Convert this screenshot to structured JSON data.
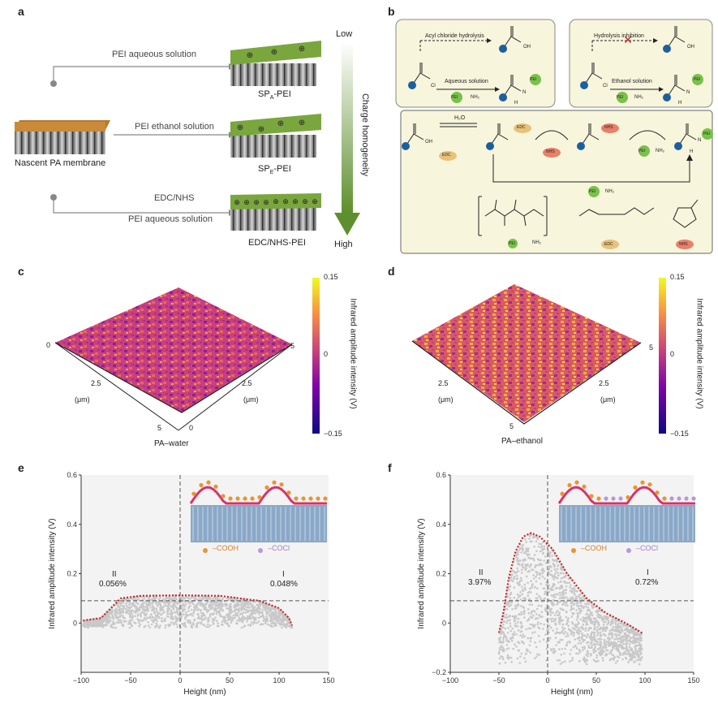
{
  "panels": {
    "a": {
      "label": "a",
      "arrow_top": "Low",
      "arrow_bottom": "High",
      "arrow_axis": "Charge homogeneity",
      "nascent": "Nascent PA membrane",
      "route1": "PEI aqueous solution",
      "route2": "PEI ethanol solution",
      "route3_top": "EDC/NHS",
      "route3_bottom": "PEI aqueous solution",
      "m1_main": "SP",
      "m1_sub": "A",
      "m1_tail": "-PEI",
      "m2_main": "SP",
      "m2_sub": "E",
      "m2_tail": "-PEI",
      "m3": "EDC/NHS-PEI"
    },
    "b": {
      "label": "b",
      "box1_title": "Acyl chloride hydrolysis",
      "box1_sub": "Aqueous solution",
      "box2_title": "Hydrolysis inhibition",
      "box2_sub": "Ethanol solution",
      "oh": "OH",
      "cl": "Cl",
      "pei": "PEI",
      "nh2": "NH₂",
      "h2o": "H₂O",
      "edc": "EDC",
      "nhs": "NHS",
      "h": "H",
      "n": "N"
    },
    "c": {
      "label": "c",
      "caption": "PA–water",
      "cbar_max": "0.15",
      "cbar_mid": "0",
      "cbar_min": "−0.15",
      "cbar_label": "Infrared amplitude intensity (V)",
      "ax_left_0": "0",
      "ax_left_mid": "2.5",
      "ax_left_unit": "(μm)",
      "ax_left_5": "5",
      "ax_right_0": "0",
      "ax_right_mid": "2.5",
      "ax_right_unit": "(μm)",
      "ax_right_5": "5"
    },
    "d": {
      "label": "d",
      "caption": "PA–ethanol",
      "cbar_max": "0.15",
      "cbar_mid": "0",
      "cbar_min": "−0.15",
      "cbar_label": "Infrared amplitude intensity (V)",
      "ax_left_mid": "2.5",
      "ax_left_unit": "(μm)",
      "ax_left_5": "5",
      "ax_right_mid": "2.5",
      "ax_right_unit": "(μm)",
      "ax_right_5": "5"
    },
    "e": {
      "label": "e",
      "region_II": "II",
      "region_II_pct": "0.056%",
      "region_I": "I",
      "region_I_pct": "0.048%",
      "legend_cooh": "–COOH",
      "legend_cocl": "–COCl"
    },
    "f": {
      "label": "f",
      "region_II": "II",
      "region_II_pct": "3.97%",
      "region_I": "I",
      "region_I_pct": "0.72%",
      "legend_cooh": "–COOH",
      "legend_cocl": "–COCl"
    }
  },
  "colors": {
    "green_layer": "#7aa63e",
    "orange_layer": "#c98a3a",
    "box_bg": "#f7f5dc",
    "scatter": "#c8c8c8",
    "boundary": "#c0282d",
    "cooh": "#e8952f",
    "cocl": "#b39ad8",
    "wave": "#d6336c"
  },
  "chart_data": [
    {
      "type": "scatter",
      "panel": "e",
      "xlabel": "Height (nm)",
      "ylabel": "Infrared amplitude intensity (V)",
      "xlim": [
        -100,
        150
      ],
      "ylim": [
        -0.2,
        0.6
      ],
      "xticks": [
        "−100",
        "−50",
        "0",
        "50",
        "100",
        "150"
      ],
      "yticks": [
        "0",
        "0.2",
        "0.4",
        "0.6"
      ],
      "threshold_y": 0.09,
      "threshold_x": 0,
      "boundary": [
        [
          -98,
          0.01
        ],
        [
          -80,
          0.02
        ],
        [
          -70,
          0.06
        ],
        [
          -60,
          0.1
        ],
        [
          -40,
          0.11
        ],
        [
          0,
          0.112
        ],
        [
          40,
          0.11
        ],
        [
          80,
          0.09
        ],
        [
          100,
          0.06
        ],
        [
          110,
          0.02
        ],
        [
          113,
          -0.01
        ]
      ]
    },
    {
      "type": "scatter",
      "panel": "f",
      "xlabel": "Height (nm)",
      "ylabel": "Infrared amplitude intensity (V)",
      "xlim": [
        -100,
        150
      ],
      "ylim": [
        -0.2,
        0.6
      ],
      "xticks": [
        "−100",
        "−50",
        "0",
        "50",
        "100",
        "150"
      ],
      "yticks": [
        "−0.2",
        "0",
        "0.2",
        "0.4",
        "0.6"
      ],
      "threshold_y": 0.09,
      "threshold_x": 0,
      "boundary": [
        [
          -50,
          -0.04
        ],
        [
          -45,
          0.05
        ],
        [
          -40,
          0.18
        ],
        [
          -33,
          0.29
        ],
        [
          -25,
          0.35
        ],
        [
          -17,
          0.365
        ],
        [
          -8,
          0.35
        ],
        [
          5,
          0.3
        ],
        [
          20,
          0.2
        ],
        [
          40,
          0.1
        ],
        [
          60,
          0.04
        ],
        [
          80,
          0.0
        ],
        [
          97,
          -0.04
        ]
      ]
    }
  ]
}
